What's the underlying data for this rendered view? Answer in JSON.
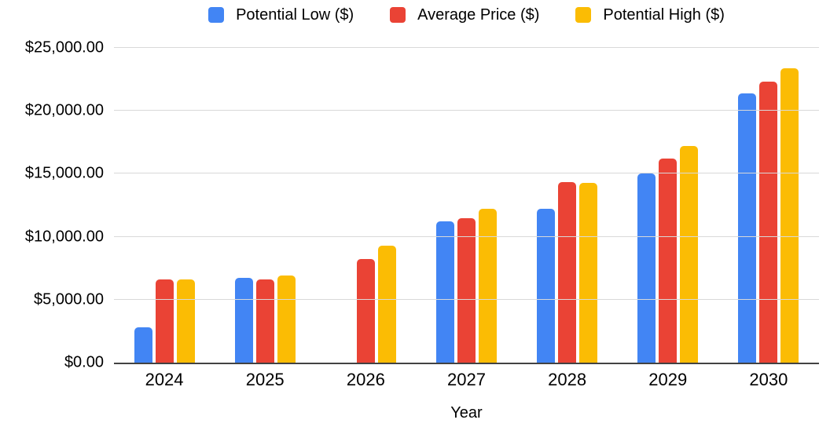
{
  "chart_data": {
    "type": "bar",
    "title": "",
    "categories": [
      "2024",
      "2025",
      "2026",
      "2027",
      "2028",
      "2029",
      "2030"
    ],
    "series": [
      {
        "name": "Potential Low ($)",
        "color": "#4285F4",
        "values": [
          2800,
          6750,
          null,
          11250,
          12200,
          15000,
          21400
        ]
      },
      {
        "name": "Average Price ($)",
        "color": "#EA4335",
        "values": [
          6600,
          6600,
          8200,
          11500,
          14350,
          16200,
          22300
        ]
      },
      {
        "name": "Potential High ($)",
        "color": "#FBBC04",
        "values": [
          6600,
          6900,
          9300,
          12250,
          14300,
          17200,
          23400
        ]
      }
    ],
    "xlabel": "Year",
    "ylabel": "",
    "ylim": [
      0,
      25000
    ],
    "ytick_step": 5000,
    "ytick_labels": [
      "$0.00",
      "$5,000.00",
      "$10,000.00",
      "$15,000.00",
      "$20,000.00",
      "$25,000.00"
    ],
    "grid": true,
    "legend_position": "top",
    "axis_line_color": "#424242",
    "gridline_color": "#d9d9d9",
    "background_color": "#ffffff"
  }
}
